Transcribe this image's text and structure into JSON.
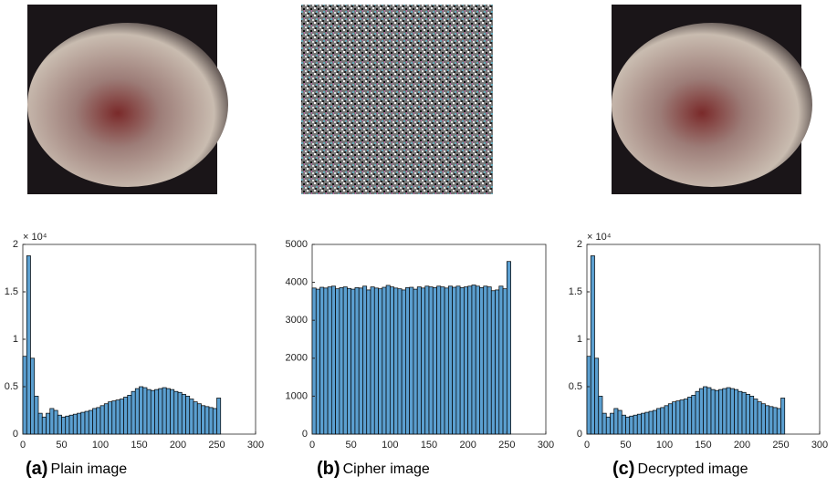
{
  "chart_data": [
    {
      "type": "histogram",
      "caption_label": "(a)",
      "caption": "Plain image",
      "y_exponent_label": "× 10⁴",
      "color": "#5b9fd0",
      "bins": [
        0,
        5,
        10,
        15,
        20,
        25,
        30,
        35,
        40,
        45,
        50,
        55,
        60,
        65,
        70,
        75,
        80,
        85,
        90,
        95,
        100,
        105,
        110,
        115,
        120,
        125,
        130,
        135,
        140,
        145,
        150,
        155,
        160,
        165,
        170,
        175,
        180,
        185,
        190,
        195,
        200,
        205,
        210,
        215,
        220,
        225,
        230,
        235,
        240,
        245,
        250,
        255
      ],
      "values": [
        8200,
        18800,
        8000,
        4000,
        2200,
        1800,
        2200,
        2700,
        2500,
        2000,
        1800,
        1900,
        2000,
        2100,
        2200,
        2300,
        2400,
        2500,
        2700,
        2800,
        3000,
        3200,
        3400,
        3500,
        3600,
        3700,
        3900,
        4100,
        4500,
        4800,
        5000,
        4900,
        4700,
        4600,
        4700,
        4800,
        4900,
        4800,
        4700,
        4500,
        4400,
        4200,
        4000,
        3700,
        3400,
        3200,
        3000,
        2900,
        2800,
        2700,
        3800
      ],
      "xlim": [
        0,
        300
      ],
      "xticks": [
        0,
        50,
        100,
        150,
        200,
        250,
        300
      ],
      "ylim": [
        0,
        20000
      ],
      "yticks": [
        0,
        {
          "value": 5000,
          "label": "0.5"
        },
        {
          "value": 10000,
          "label": "1"
        },
        {
          "value": 15000,
          "label": "1.5"
        },
        {
          "value": 20000,
          "label": "2"
        }
      ]
    },
    {
      "type": "histogram",
      "caption_label": "(b)",
      "caption": "Cipher image",
      "color": "#5b9fd0",
      "bins": [
        0,
        5,
        10,
        15,
        20,
        25,
        30,
        35,
        40,
        45,
        50,
        55,
        60,
        65,
        70,
        75,
        80,
        85,
        90,
        95,
        100,
        105,
        110,
        115,
        120,
        125,
        130,
        135,
        140,
        145,
        150,
        155,
        160,
        165,
        170,
        175,
        180,
        185,
        190,
        195,
        200,
        205,
        210,
        215,
        220,
        225,
        230,
        235,
        240,
        245,
        250,
        255
      ],
      "values": [
        3850,
        3820,
        3870,
        3850,
        3880,
        3900,
        3830,
        3860,
        3880,
        3840,
        3820,
        3860,
        3850,
        3900,
        3800,
        3880,
        3850,
        3830,
        3870,
        3920,
        3880,
        3850,
        3830,
        3800,
        3860,
        3870,
        3820,
        3880,
        3850,
        3900,
        3880,
        3860,
        3900,
        3880,
        3850,
        3900,
        3870,
        3900,
        3860,
        3880,
        3900,
        3930,
        3900,
        3860,
        3900,
        3880,
        3780,
        3800,
        3900,
        3830,
        4550
      ],
      "xlim": [
        0,
        300
      ],
      "xticks": [
        0,
        50,
        100,
        150,
        200,
        250,
        300
      ],
      "ylim": [
        0,
        5000
      ],
      "yticks": [
        0,
        1000,
        2000,
        3000,
        4000,
        5000
      ]
    },
    {
      "type": "histogram",
      "caption_label": "(c)",
      "caption": "Decrypted image",
      "y_exponent_label": "× 10⁴",
      "color": "#5b9fd0",
      "bins": [
        0,
        5,
        10,
        15,
        20,
        25,
        30,
        35,
        40,
        45,
        50,
        55,
        60,
        65,
        70,
        75,
        80,
        85,
        90,
        95,
        100,
        105,
        110,
        115,
        120,
        125,
        130,
        135,
        140,
        145,
        150,
        155,
        160,
        165,
        170,
        175,
        180,
        185,
        190,
        195,
        200,
        205,
        210,
        215,
        220,
        225,
        230,
        235,
        240,
        245,
        250,
        255
      ],
      "values": [
        8200,
        18800,
        8000,
        4000,
        2200,
        1800,
        2200,
        2700,
        2500,
        2000,
        1800,
        1900,
        2000,
        2100,
        2200,
        2300,
        2400,
        2500,
        2700,
        2800,
        3000,
        3200,
        3400,
        3500,
        3600,
        3700,
        3900,
        4100,
        4500,
        4800,
        5000,
        4900,
        4700,
        4600,
        4700,
        4800,
        4900,
        4800,
        4700,
        4500,
        4400,
        4200,
        4000,
        3700,
        3400,
        3200,
        3000,
        2900,
        2800,
        2700,
        3800
      ],
      "xlim": [
        0,
        300
      ],
      "xticks": [
        0,
        50,
        100,
        150,
        200,
        250,
        300
      ],
      "ylim": [
        0,
        20000
      ],
      "yticks": [
        0,
        {
          "value": 5000,
          "label": "0.5"
        },
        {
          "value": 10000,
          "label": "1"
        },
        {
          "value": 15000,
          "label": "1.5"
        },
        {
          "value": 20000,
          "label": "2"
        }
      ]
    }
  ]
}
